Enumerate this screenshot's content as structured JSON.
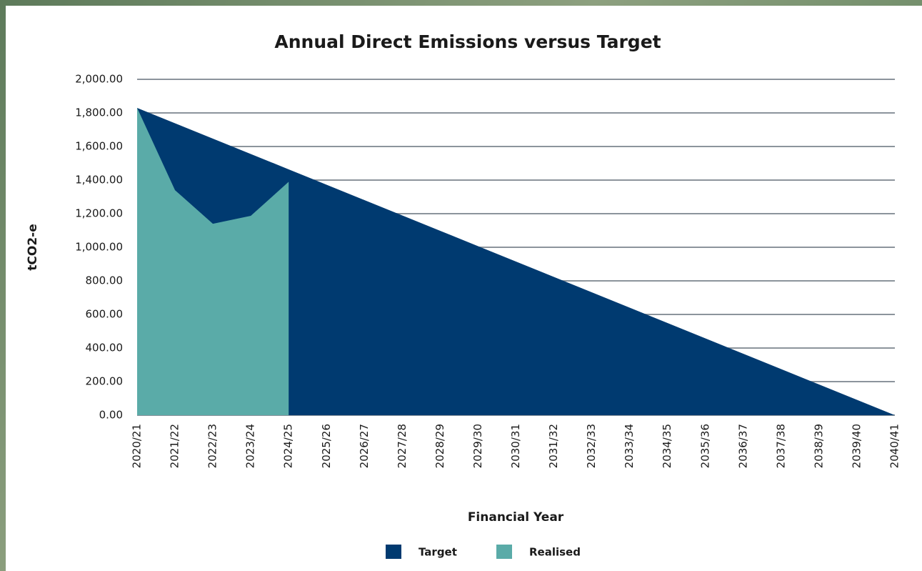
{
  "chart_data": {
    "type": "area",
    "title": "Annual Direct Emissions versus Target",
    "x_label": "Financial Year",
    "y_label": "tCO2-e",
    "categories": [
      "2020/21",
      "2021/22",
      "2022/23",
      "2023/24",
      "2024/25",
      "2025/26",
      "2026/27",
      "2027/28",
      "2028/29",
      "2029/30",
      "2030/31",
      "2031/32",
      "2032/33",
      "2033/34",
      "2034/35",
      "2035/36",
      "2036/37",
      "2037/38",
      "2038/39",
      "2039/40",
      "2040/41"
    ],
    "series": [
      {
        "name": "Target",
        "color": "#003a70",
        "values": [
          1830,
          1738.5,
          1647,
          1555.5,
          1464,
          1372.5,
          1281,
          1189.5,
          1098,
          1006.5,
          915,
          823.5,
          732,
          640.5,
          549,
          457.5,
          366,
          274.5,
          183,
          91.5,
          0
        ]
      },
      {
        "name": "Realised",
        "color": "#5aaba8",
        "values": [
          1830,
          1340,
          1140,
          1187,
          1390,
          null,
          null,
          null,
          null,
          null,
          null,
          null,
          null,
          null,
          null,
          null,
          null,
          null,
          null,
          null,
          null
        ]
      }
    ],
    "ylim": [
      0,
      2000
    ],
    "yticks": [
      {
        "value": 0,
        "label": "0.00"
      },
      {
        "value": 200,
        "label": "200.00"
      },
      {
        "value": 400,
        "label": "400.00"
      },
      {
        "value": 600,
        "label": "600.00"
      },
      {
        "value": 800,
        "label": "800.00"
      },
      {
        "value": 1000,
        "label": "1,000.00"
      },
      {
        "value": 1200,
        "label": "1,200.00"
      },
      {
        "value": 1400,
        "label": "1,400.00"
      },
      {
        "value": 1600,
        "label": "1,600.00"
      },
      {
        "value": 1800,
        "label": "1,800.00"
      },
      {
        "value": 2000,
        "label": "2,000.00"
      }
    ],
    "grid": true,
    "legend": "bottom"
  }
}
